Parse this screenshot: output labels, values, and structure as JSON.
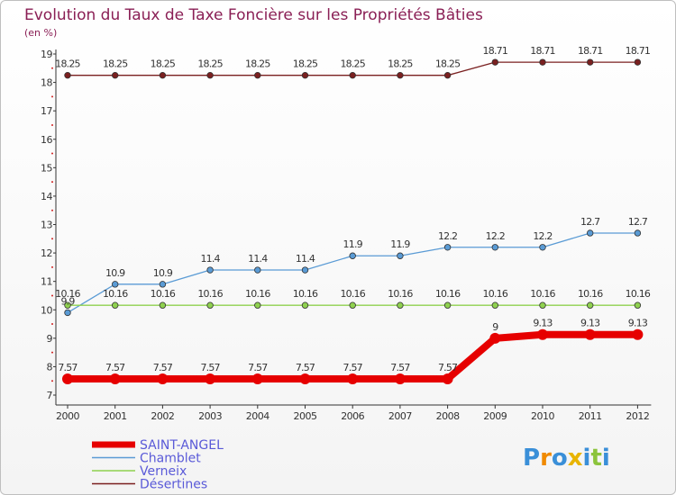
{
  "chart_data": {
    "type": "line",
    "title": "Evolution du Taux de Taxe Foncière sur les Propriétés Bâties",
    "subtitle": "(en %)",
    "xlabel": "",
    "ylabel": "",
    "categories": [
      "2000",
      "2001",
      "2002",
      "2003",
      "2004",
      "2005",
      "2006",
      "2007",
      "2008",
      "2009",
      "2010",
      "2011",
      "2012"
    ],
    "ylim": [
      7,
      19
    ],
    "yticks": [
      "7",
      "8",
      "9",
      "10",
      "11",
      "12",
      "13",
      "14",
      "15",
      "16",
      "17",
      "18",
      "19"
    ],
    "grid": false,
    "legend_position": "bottom-left",
    "series": [
      {
        "name": "SAINT-ANGEL",
        "color": "#e60000",
        "values": [
          7.57,
          7.57,
          7.57,
          7.57,
          7.57,
          7.57,
          7.57,
          7.57,
          7.57,
          9,
          9.13,
          9.13,
          9.13
        ],
        "labels": [
          "7.57",
          "7.57",
          "7.57",
          "7.57",
          "7.57",
          "7.57",
          "7.57",
          "7.57",
          "7.57",
          "9",
          "9.13",
          "9.13",
          "9.13"
        ]
      },
      {
        "name": "Chamblet",
        "color": "#5a9bd5",
        "values": [
          9.9,
          10.9,
          10.9,
          11.4,
          11.4,
          11.4,
          11.9,
          11.9,
          12.2,
          12.2,
          12.2,
          12.7,
          12.7
        ],
        "labels": [
          "9.9",
          "10.9",
          "10.9",
          "11.4",
          "11.4",
          "11.4",
          "11.9",
          "11.9",
          "12.2",
          "12.2",
          "12.2",
          "12.7",
          "12.7"
        ]
      },
      {
        "name": "Verneix",
        "color": "#8fd14f",
        "values": [
          10.16,
          10.16,
          10.16,
          10.16,
          10.16,
          10.16,
          10.16,
          10.16,
          10.16,
          10.16,
          10.16,
          10.16,
          10.16
        ],
        "labels": [
          "10.16",
          "10.16",
          "10.16",
          "10.16",
          "10.16",
          "10.16",
          "10.16",
          "10.16",
          "10.16",
          "10.16",
          "10.16",
          "10.16",
          "10.16"
        ]
      },
      {
        "name": "Désertines",
        "color": "#7a2020",
        "values": [
          18.25,
          18.25,
          18.25,
          18.25,
          18.25,
          18.25,
          18.25,
          18.25,
          18.25,
          18.71,
          18.71,
          18.71,
          18.71
        ],
        "labels": [
          "18.25",
          "18.25",
          "18.25",
          "18.25",
          "18.25",
          "18.25",
          "18.25",
          "18.25",
          "18.25",
          "18.71",
          "18.71",
          "18.71",
          "18.71"
        ]
      }
    ]
  },
  "logo": {
    "text": "Proxiti",
    "colors": [
      "#3a8fd8",
      "#f08a00",
      "#3a8fd8",
      "#e8b400",
      "#3a8fd8",
      "#8cc43c",
      "#3a8fd8"
    ]
  }
}
